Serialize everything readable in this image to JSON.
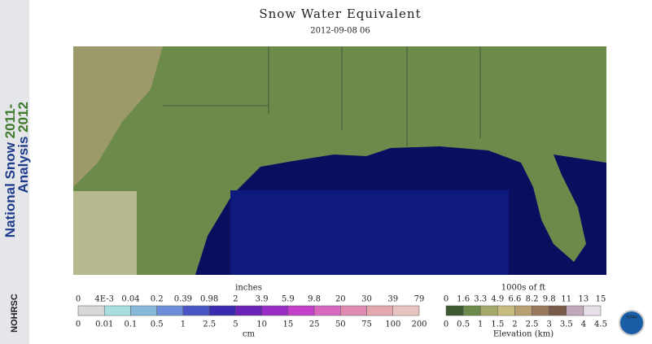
{
  "header": {
    "title": "Snow Water Equivalent",
    "date": "2012-09-08 06"
  },
  "side": {
    "line1": "National Snow",
    "year1": "2011-",
    "line2": "Analysis",
    "year2": "2012",
    "logo": "NOHRSC"
  },
  "snow_legend": {
    "top_unit": "inches",
    "bottom_unit": "cm",
    "top_labels": [
      "0",
      "4E-3",
      "0.04",
      "0.2",
      "0.39",
      "0.98",
      "2",
      "3.9",
      "5.9",
      "9.8",
      "20",
      "30",
      "39",
      "79"
    ],
    "bottom_labels": [
      "0",
      "0.01",
      "0.1",
      "0.5",
      "1",
      "2.5",
      "5",
      "10",
      "15",
      "25",
      "50",
      "75",
      "100",
      "200"
    ],
    "colors": [
      "#d8d8d8",
      "#a8dede",
      "#86b8da",
      "#6c8ed8",
      "#4a56c8",
      "#3a2ab0",
      "#6a22b8",
      "#9a2cc8",
      "#c440c8",
      "#d868c0",
      "#e08cb0",
      "#e4a8b0",
      "#e8c4c0"
    ]
  },
  "elevation_legend": {
    "top_unit": "1000s of ft",
    "bottom_unit": "Elevation (km)",
    "top_labels": [
      "0",
      "1.6",
      "3.3",
      "4.9",
      "6.6",
      "8.2",
      "9.8",
      "11",
      "13",
      "15"
    ],
    "bottom_labels": [
      "0",
      "0.5",
      "1",
      "1.5",
      "2",
      "2.5",
      "3",
      "3.5",
      "4",
      "4.5"
    ],
    "colors": [
      "#3d5a30",
      "#6e8a4a",
      "#a4a868",
      "#c8bc80",
      "#b8a070",
      "#9a7a5a",
      "#7a5a48",
      "#c0a8b8",
      "#e8e0e8"
    ]
  },
  "badge": "NOAA"
}
